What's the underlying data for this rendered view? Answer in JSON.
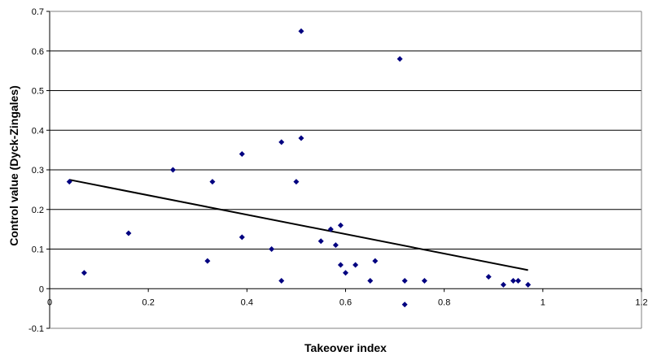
{
  "chart_data": {
    "type": "scatter",
    "title": "",
    "xlabel": "Takeover index",
    "ylabel": "Control value (Dyck-Zingales)",
    "xlim": [
      0,
      1.2
    ],
    "ylim": [
      -0.1,
      0.7
    ],
    "x_ticks": [
      "0",
      "0.2",
      "0.4",
      "0.6",
      "0.8",
      "1",
      "1.2"
    ],
    "y_ticks": [
      "-0.1",
      "0",
      "0.1",
      "0.2",
      "0.3",
      "0.4",
      "0.5",
      "0.6",
      "0.7"
    ],
    "grid": "horizontal",
    "marker_color": "#000080",
    "trendline_color": "#000000",
    "points": [
      {
        "x": 0.04,
        "y": 0.27
      },
      {
        "x": 0.07,
        "y": 0.04
      },
      {
        "x": 0.16,
        "y": 0.14
      },
      {
        "x": 0.25,
        "y": 0.3
      },
      {
        "x": 0.32,
        "y": 0.07
      },
      {
        "x": 0.33,
        "y": 0.27
      },
      {
        "x": 0.39,
        "y": 0.34
      },
      {
        "x": 0.39,
        "y": 0.13
      },
      {
        "x": 0.45,
        "y": 0.1
      },
      {
        "x": 0.47,
        "y": 0.37
      },
      {
        "x": 0.47,
        "y": 0.02
      },
      {
        "x": 0.5,
        "y": 0.27
      },
      {
        "x": 0.51,
        "y": 0.65
      },
      {
        "x": 0.51,
        "y": 0.38
      },
      {
        "x": 0.55,
        "y": 0.12
      },
      {
        "x": 0.57,
        "y": 0.15
      },
      {
        "x": 0.58,
        "y": 0.11
      },
      {
        "x": 0.59,
        "y": 0.16
      },
      {
        "x": 0.59,
        "y": 0.06
      },
      {
        "x": 0.6,
        "y": 0.04
      },
      {
        "x": 0.62,
        "y": 0.06
      },
      {
        "x": 0.65,
        "y": 0.02
      },
      {
        "x": 0.66,
        "y": 0.07
      },
      {
        "x": 0.71,
        "y": 0.58
      },
      {
        "x": 0.72,
        "y": 0.02
      },
      {
        "x": 0.72,
        "y": -0.04
      },
      {
        "x": 0.76,
        "y": 0.02
      },
      {
        "x": 0.89,
        "y": 0.03
      },
      {
        "x": 0.92,
        "y": 0.01
      },
      {
        "x": 0.94,
        "y": 0.02
      },
      {
        "x": 0.95,
        "y": 0.02
      },
      {
        "x": 0.97,
        "y": 0.01
      }
    ],
    "trendline": {
      "x": [
        0.04,
        0.97
      ],
      "y": [
        0.275,
        0.047
      ]
    }
  }
}
